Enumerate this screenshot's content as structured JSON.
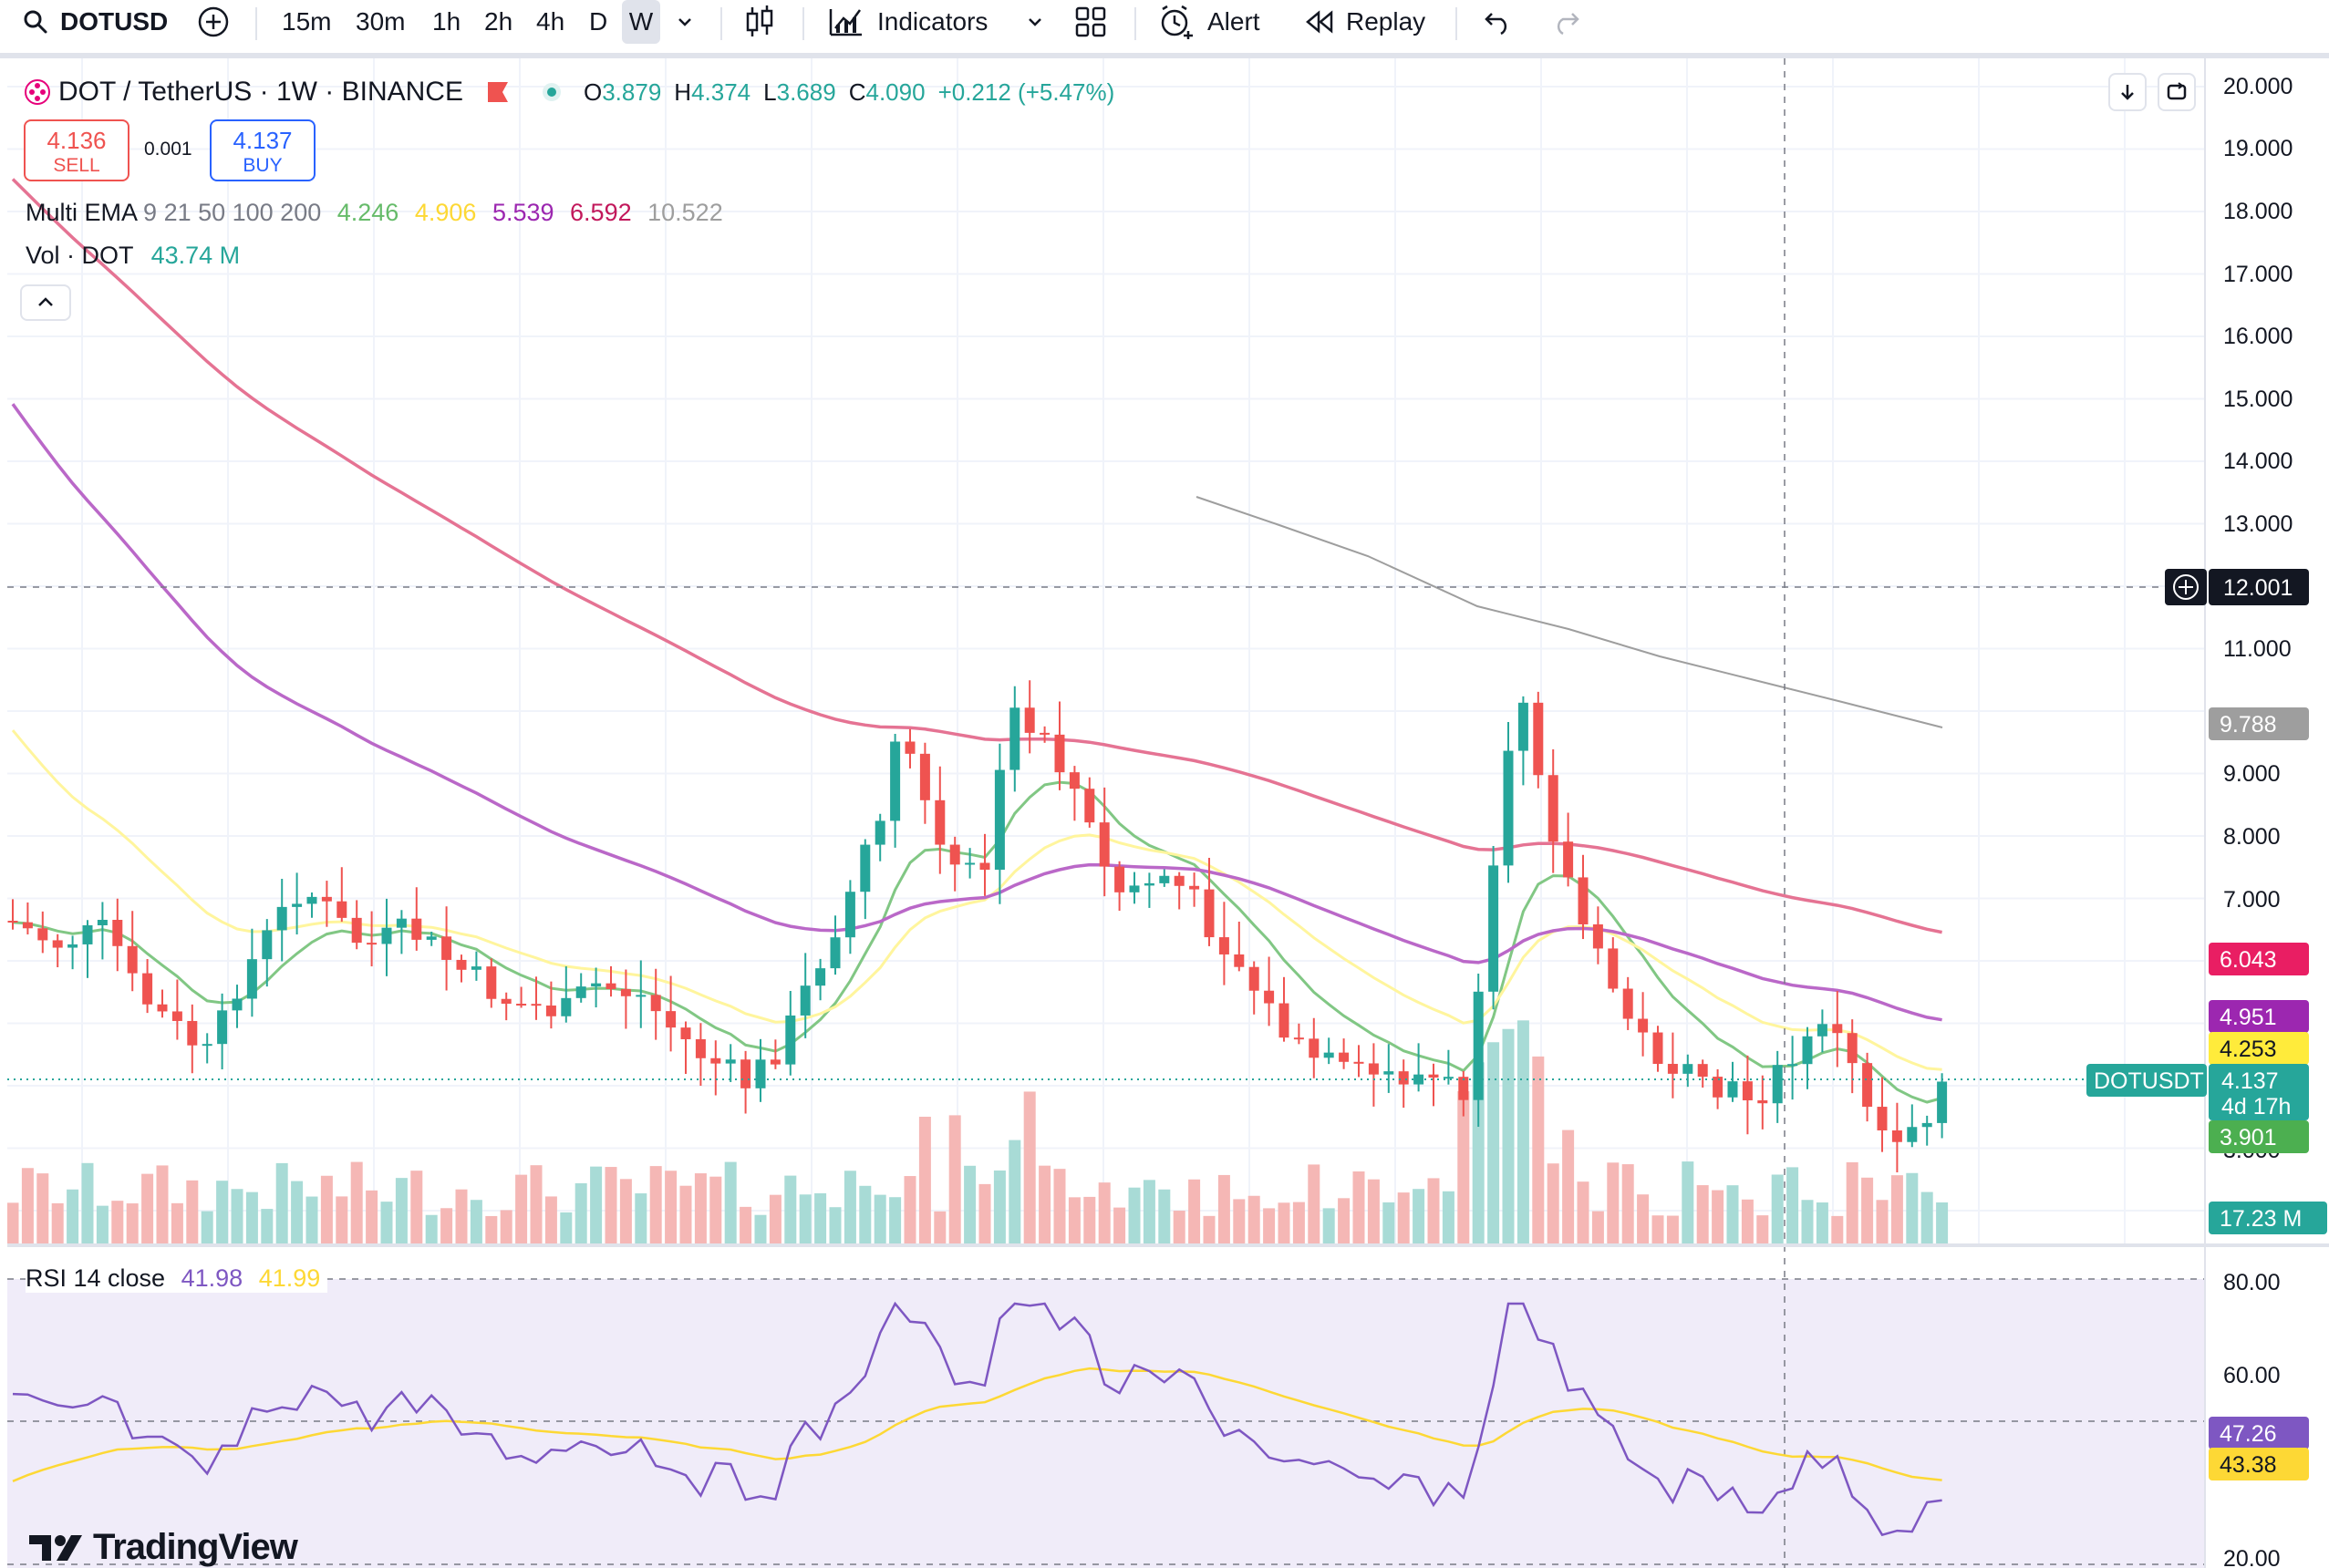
{
  "toolbar": {
    "symbol": "DOTUSD",
    "intervals": [
      "15m",
      "30m",
      "1h",
      "2h",
      "4h",
      "D",
      "W"
    ],
    "selected_interval": "W",
    "indicators_label": "Indicators",
    "alert_label": "Alert",
    "replay_label": "Replay"
  },
  "header": {
    "title": "DOT / TetherUS · 1W · BINANCE",
    "ohlc": {
      "o_label": "O",
      "o": "3.879",
      "h_label": "H",
      "h": "4.374",
      "l_label": "L",
      "l": "3.689",
      "c_label": "C",
      "c": "4.090",
      "change": "+0.212 (+5.47%)"
    },
    "sell_price": "4.136",
    "sell_label": "SELL",
    "spread": "0.001",
    "buy_price": "4.137",
    "buy_label": "BUY",
    "ema_label": "Multi EMA",
    "ema_periods": "9 21 50 100 200",
    "ema_values": [
      "4.246",
      "4.906",
      "5.539",
      "6.592",
      "10.522"
    ],
    "vol_label": "Vol · DOT",
    "vol_value": "43.74 M"
  },
  "price_axis": {
    "labels": [
      "20.000",
      "19.000",
      "18.000",
      "17.000",
      "16.000",
      "15.000",
      "14.000",
      "13.000",
      "11.000",
      "9.000",
      "8.000",
      "7.000",
      "3.000"
    ],
    "badges": {
      "crosshair": "12.001",
      "ema200": "9.788",
      "ema100": "6.043",
      "ema50": "4.951",
      "ema21": "4.253",
      "last_symbol": "DOTUSDT",
      "last_price": "4.137",
      "countdown": "4d 17h",
      "ema9": "3.901",
      "volume": "17.23 M"
    }
  },
  "rsi": {
    "label": "RSI 14 close",
    "value": "41.98",
    "ma_value": "41.99",
    "axis_labels": [
      "80.00",
      "60.00",
      "20.00"
    ],
    "badge_rsi": "47.26",
    "badge_ma": "43.38"
  },
  "colors": {
    "up": "#26a69a",
    "down": "#ef5350",
    "ema9": "#66bb6a",
    "ema21": "#ffeb3b",
    "ema50": "#9c27b0",
    "ema100": "#c2185b",
    "ema200": "#9e9e9e",
    "rsi_line": "#7e57c2",
    "rsi_ma": "#fdd835"
  },
  "brand": "TradingView"
}
